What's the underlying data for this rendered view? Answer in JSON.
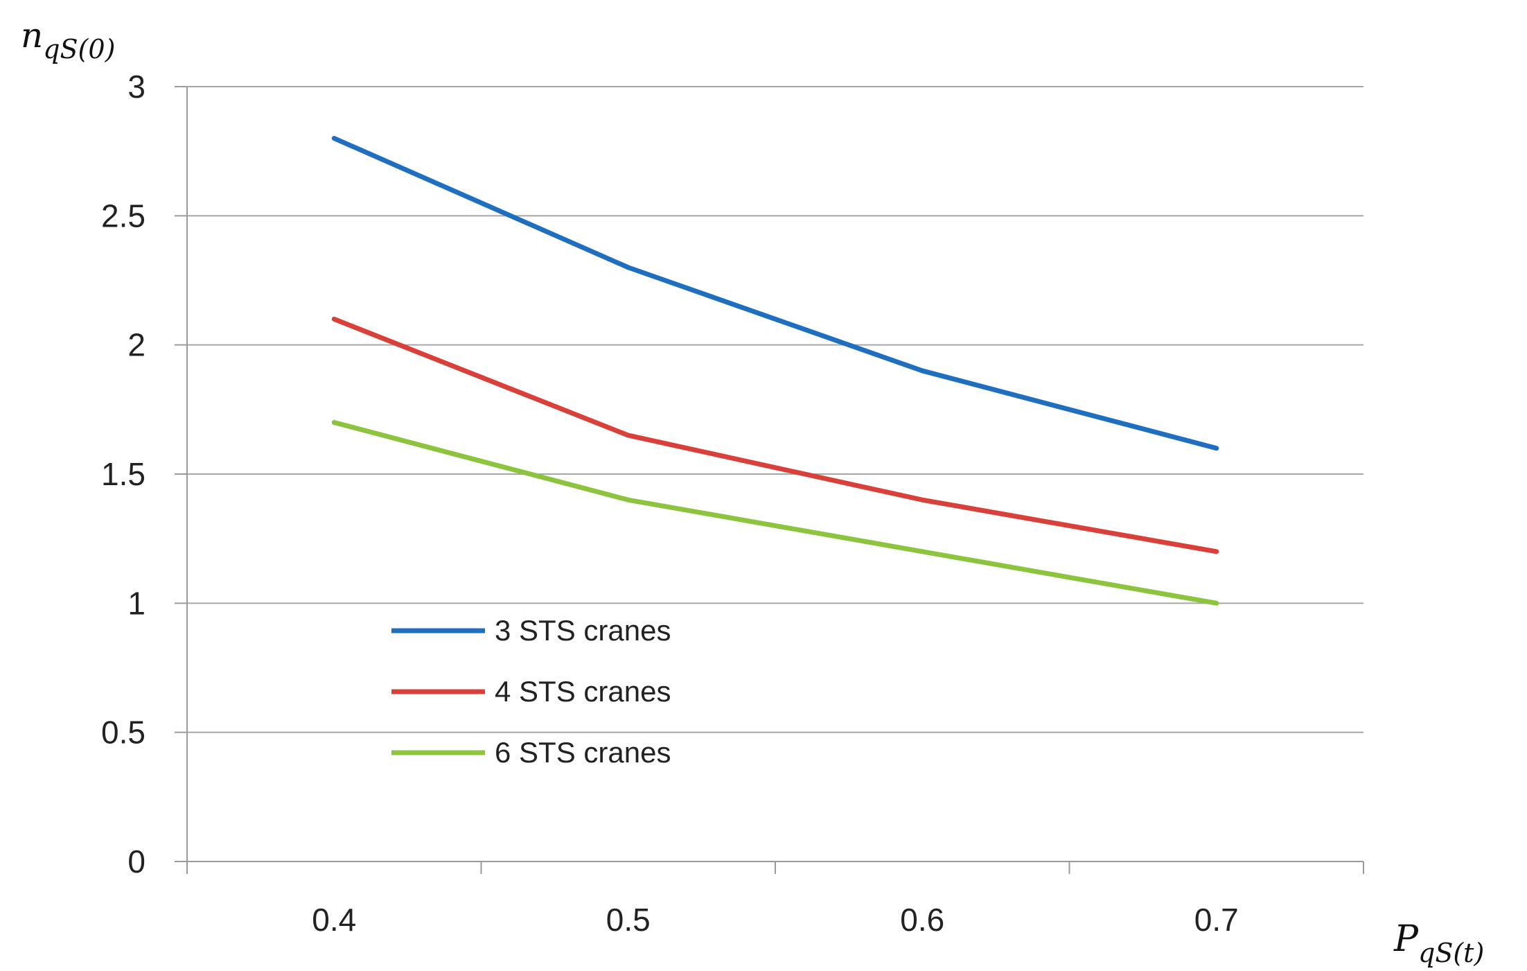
{
  "chart_data": {
    "type": "line",
    "categories": [
      "0.4",
      "0.5",
      "0.6",
      "0.7"
    ],
    "ylim": [
      0,
      3
    ],
    "yticks": [
      "0",
      "0.5",
      "1",
      "1.5",
      "2",
      "2.5",
      "3"
    ],
    "grid": true,
    "legend_position": "left-middle",
    "ylabel": {
      "base": "n",
      "sub": "qS(0)"
    },
    "xlabel": {
      "base": "P",
      "sub": "qS(t)"
    },
    "series": [
      {
        "name": "3 STS cranes",
        "color": "#1f6fc1",
        "values": [
          2.8,
          2.3,
          1.9,
          1.6
        ]
      },
      {
        "name": "4 STS cranes",
        "color": "#d9403a",
        "values": [
          2.1,
          1.65,
          1.4,
          1.2
        ]
      },
      {
        "name": "6 STS cranes",
        "color": "#8cc43e",
        "values": [
          1.7,
          1.4,
          1.2,
          1.0
        ]
      }
    ]
  }
}
